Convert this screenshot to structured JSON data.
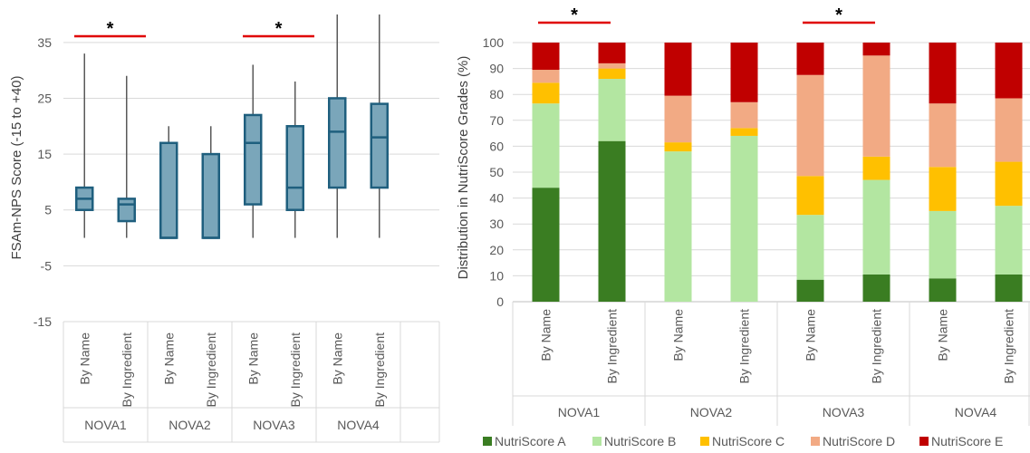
{
  "chart_data": [
    {
      "type": "box",
      "xlabel": "",
      "ylabel": "FSAm-NPS Score (-15 to +40)",
      "ylim": [
        -15,
        40
      ],
      "yticks": [
        35,
        25,
        15,
        5,
        -5,
        -15
      ],
      "grid": true,
      "groups": [
        "NOVA1",
        "NOVA2",
        "NOVA3",
        "NOVA4"
      ],
      "methods": [
        "By Name",
        "By Ingredient"
      ],
      "boxes": [
        {
          "group": "NOVA1",
          "method": "By Name",
          "min": 0,
          "q1": 5,
          "median": 7,
          "q3": 9,
          "max": 33
        },
        {
          "group": "NOVA1",
          "method": "By Ingredient",
          "min": 0,
          "q1": 3,
          "median": 6,
          "q3": 7,
          "max": 29
        },
        {
          "group": "NOVA2",
          "method": "By Name",
          "min": 0,
          "q1": 0,
          "median": 0,
          "q3": 17,
          "max": 20
        },
        {
          "group": "NOVA2",
          "method": "By Ingredient",
          "min": 0,
          "q1": 0,
          "median": 0,
          "q3": 15,
          "max": 20
        },
        {
          "group": "NOVA3",
          "method": "By Name",
          "min": 0,
          "q1": 6,
          "median": 17,
          "q3": 22,
          "max": 31
        },
        {
          "group": "NOVA3",
          "method": "By Ingredient",
          "min": 0,
          "q1": 5,
          "median": 9,
          "q3": 20,
          "max": 28
        },
        {
          "group": "NOVA4",
          "method": "By Name",
          "min": 0,
          "q1": 9,
          "median": 19,
          "q3": 25,
          "max": 40
        },
        {
          "group": "NOVA4",
          "method": "By Ingredient",
          "min": 0,
          "q1": 9,
          "median": 18,
          "q3": 24,
          "max": 40
        }
      ],
      "significance": [
        {
          "group": "NOVA1",
          "label": "*"
        },
        {
          "group": "NOVA3",
          "label": "*"
        }
      ]
    },
    {
      "type": "stacked-bar",
      "xlabel": "",
      "ylabel": "Distribution in NutriScore Grades (%)",
      "ylim": [
        0,
        100
      ],
      "yticks": [
        0,
        10,
        20,
        30,
        40,
        50,
        60,
        70,
        80,
        90,
        100
      ],
      "grid": true,
      "legend_position": "bottom",
      "groups": [
        "NOVA1",
        "NOVA2",
        "NOVA3",
        "NOVA4"
      ],
      "methods": [
        "By Name",
        "By Ingredient"
      ],
      "series": [
        {
          "name": "NutriScore A",
          "color": "#3a7d22",
          "values": [
            44,
            62,
            0,
            0,
            8.5,
            10.5,
            9,
            10.5
          ]
        },
        {
          "name": "NutriScore B",
          "color": "#b3e6a1",
          "values": [
            32.5,
            24,
            58,
            64,
            25,
            36.5,
            26,
            26.5
          ]
        },
        {
          "name": "NutriScore C",
          "color": "#ffc000",
          "values": [
            8,
            4,
            3.5,
            3,
            15,
            9,
            17,
            17
          ]
        },
        {
          "name": "NutriScore D",
          "color": "#f2aa84",
          "values": [
            5,
            2,
            18,
            10,
            39,
            39,
            24.5,
            24.5
          ]
        },
        {
          "name": "NutriScore E",
          "color": "#c00000",
          "values": [
            10.5,
            8,
            20.5,
            23,
            12.5,
            5,
            23.5,
            21.5
          ]
        }
      ],
      "significance": [
        {
          "group": "NOVA1",
          "label": "*"
        },
        {
          "group": "NOVA3",
          "label": "*"
        }
      ]
    }
  ],
  "colors": {
    "box_fill": "#7aa6ba",
    "box_stroke": "#1f5f7e",
    "whisker": "#595959",
    "gridline": "#d9d9d9",
    "axis_text": "#595959",
    "significance_line": "#e00000"
  }
}
